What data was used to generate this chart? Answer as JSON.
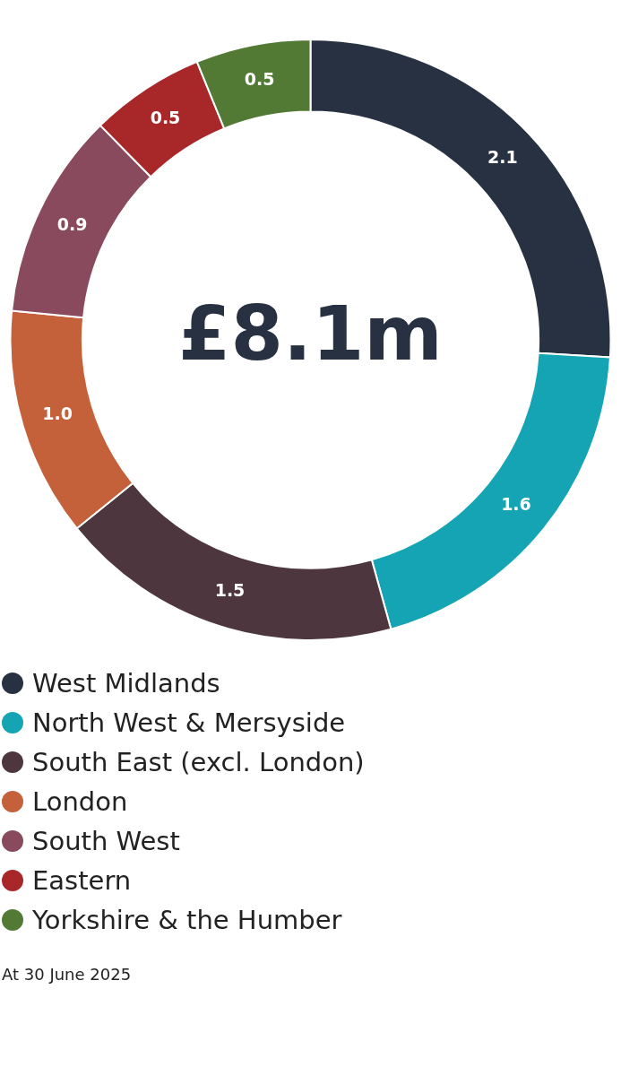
{
  "chart_data": {
    "type": "donut",
    "title": "£8.1m",
    "categories": [
      "West Midlands",
      "North West & Mersyside",
      "South East (excl. London)",
      "London",
      "South West",
      "Eastern",
      "Yorkshire & the Humber"
    ],
    "values": [
      2.1,
      1.6,
      1.5,
      1.0,
      0.9,
      0.5,
      0.5
    ],
    "colors": [
      "#283142",
      "#14a4b4",
      "#4e363f",
      "#c4603a",
      "#8a4a5e",
      "#a8282a",
      "#537a35"
    ],
    "value_labels": [
      "2.1",
      "1.6",
      "1.5",
      "1.0",
      "0.9",
      "0.5",
      "0.5"
    ],
    "legend": "bottom",
    "annotations": [
      "At 30 June 2025"
    ]
  }
}
